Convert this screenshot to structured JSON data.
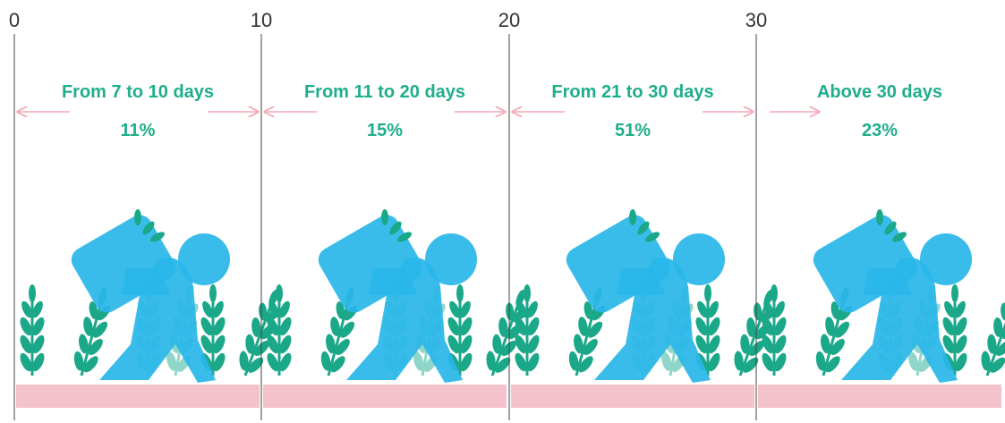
{
  "ticks": [
    "0",
    "10",
    "20",
    "30"
  ],
  "segments": [
    {
      "label": "From 7 to 10 days",
      "share": "11%"
    },
    {
      "label": "From 11 to 20 days",
      "share": "15%"
    },
    {
      "label": "From 21 to 30 days",
      "share": "51%"
    },
    {
      "label": "Above 30 days",
      "share": "23%"
    }
  ]
}
